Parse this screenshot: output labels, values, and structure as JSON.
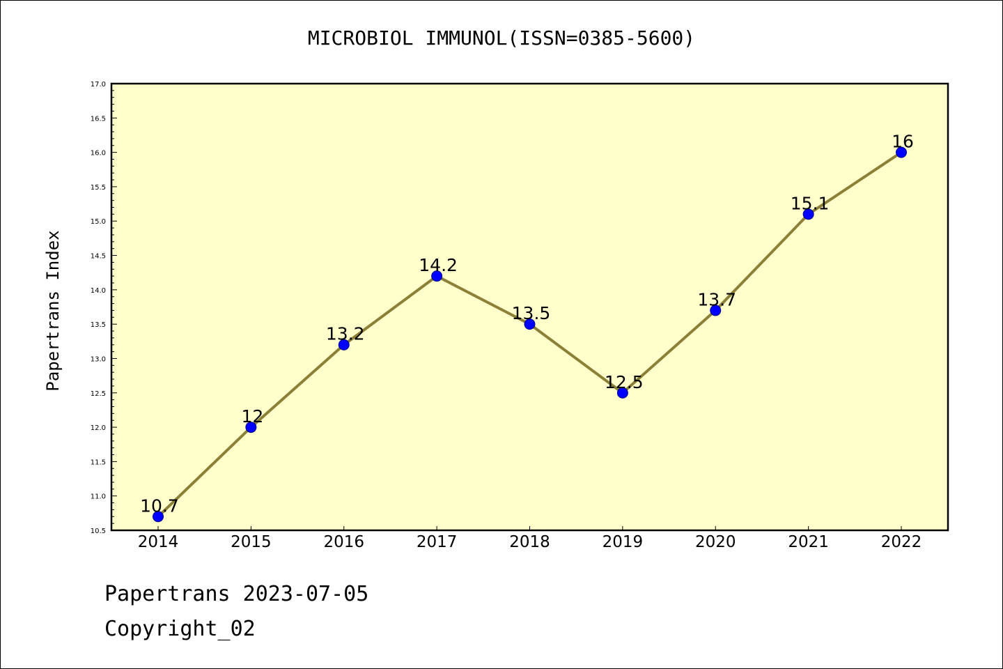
{
  "chart_data": {
    "type": "line",
    "title": "MICROBIOL IMMUNOL(ISSN=0385-5600)",
    "xlabel": "",
    "ylabel": "Papertrans Index",
    "categories": [
      "2014",
      "2015",
      "2016",
      "2017",
      "2018",
      "2019",
      "2020",
      "2021",
      "2022"
    ],
    "series": [
      {
        "values": [
          10.7,
          12,
          13.2,
          14.2,
          13.5,
          12.5,
          13.7,
          15.1,
          16
        ]
      }
    ],
    "data_labels": [
      "10.7",
      "12",
      "13.2",
      "14.2",
      "13.5",
      "12.5",
      "13.7",
      "15.1",
      "16"
    ],
    "ylim": [
      10.5,
      17.0
    ],
    "yticks": [
      "10.5",
      "11.0",
      "11.5",
      "12.0",
      "12.5",
      "13.0",
      "13.5",
      "14.0",
      "14.5",
      "15.0",
      "15.5",
      "16.0",
      "16.5",
      "17.0"
    ],
    "grid": false,
    "legend": "none",
    "colors": {
      "line": "#8c7f37",
      "marker": "#0000ff",
      "plot_background": "#ffffcc"
    }
  },
  "footer": {
    "line1": "Papertrans 2023-07-05",
    "line2": "Copyright_02"
  }
}
